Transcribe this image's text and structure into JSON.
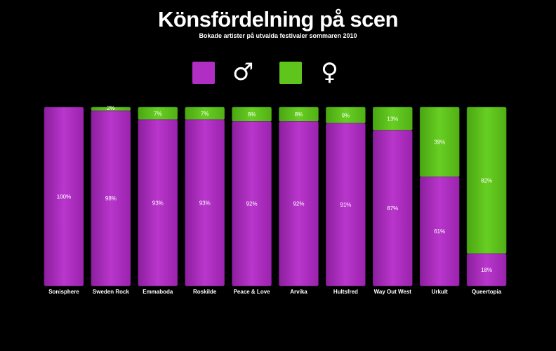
{
  "colors": {
    "male": "#b02ec4",
    "female": "#5fc51c",
    "background": "#000000"
  },
  "legend": {
    "male_symbol": "♂",
    "female_symbol": "♀"
  },
  "chart_data": {
    "type": "bar",
    "stacked": true,
    "title": "Könsfördelning på scen",
    "subtitle": "Bokade artister på utvalda festivaler sommaren 2010",
    "ylim": [
      0,
      100
    ],
    "categories": [
      "Sonisphere",
      "Sweden Rock",
      "Emmaboda",
      "Roskilde",
      "Peace & Love",
      "Arvika",
      "Hultsfred",
      "Way Out West",
      "Urkult",
      "Queertopia"
    ],
    "series": [
      {
        "key": "male",
        "values": [
          100,
          98,
          93,
          93,
          92,
          92,
          91,
          87,
          61,
          18
        ]
      },
      {
        "key": "female",
        "values": [
          0,
          2,
          7,
          7,
          8,
          8,
          9,
          13,
          39,
          82
        ]
      }
    ],
    "value_labels": {
      "male": [
        "100%",
        "98%",
        "93%",
        "93%",
        "92%",
        "92%",
        "91%",
        "87%",
        "61%",
        "18%"
      ],
      "female": [
        "",
        "2%",
        "7%",
        "7%",
        "8%",
        "8%",
        "9%",
        "13%",
        "39%",
        "82%"
      ]
    }
  }
}
